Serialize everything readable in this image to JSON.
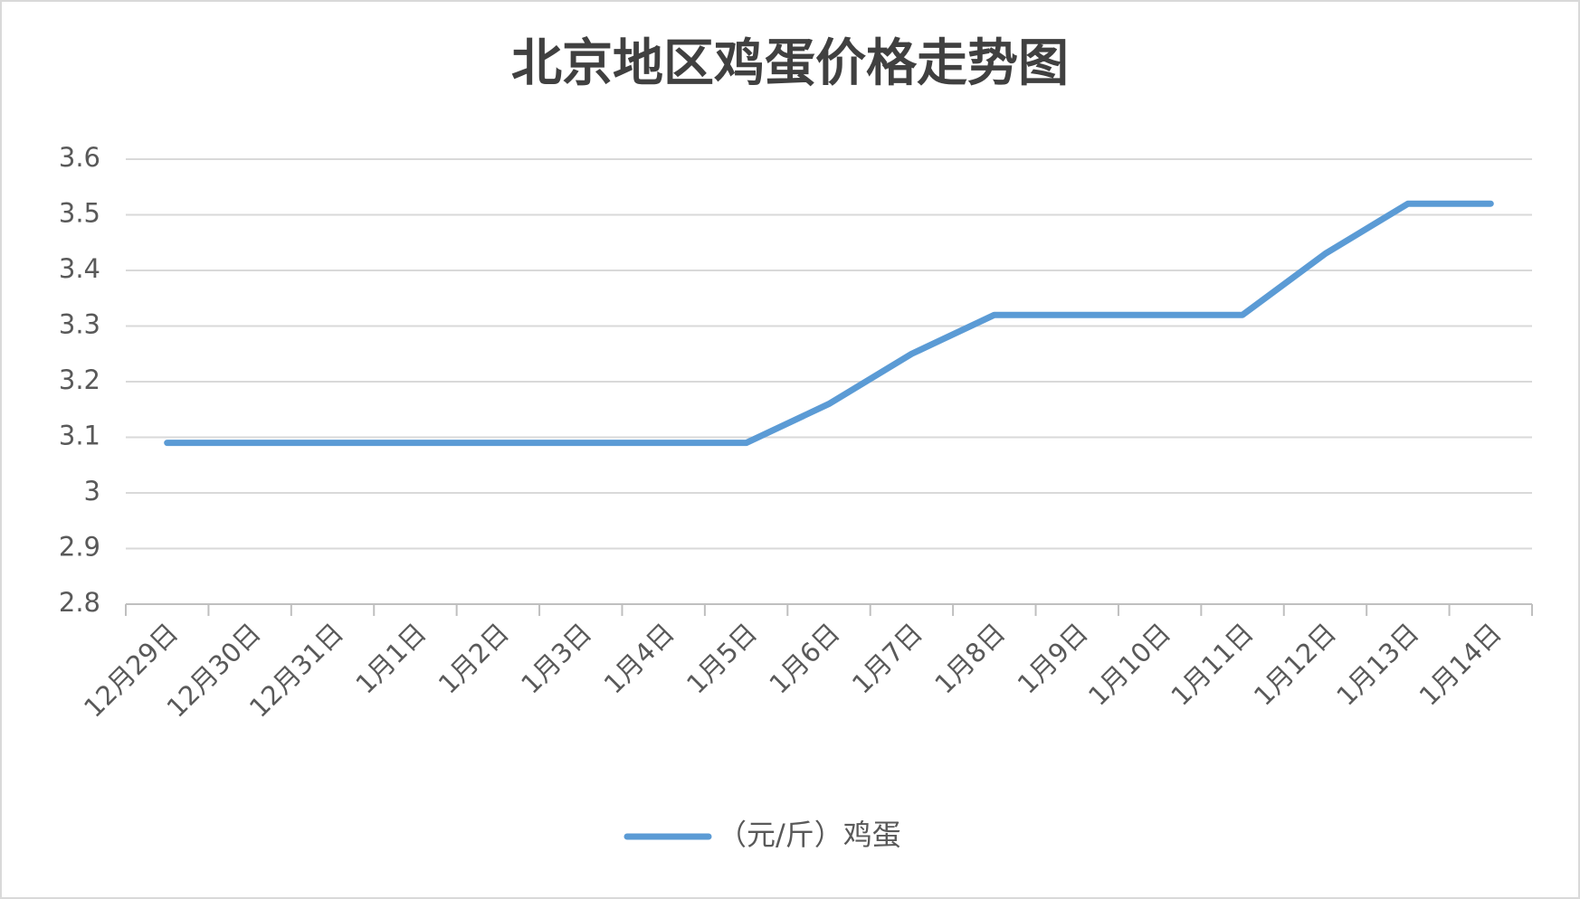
{
  "chart_data": {
    "type": "line",
    "title": "北京地区鸡蛋价格走势图",
    "categories": [
      "12月29日",
      "12月30日",
      "12月31日",
      "1月1日",
      "1月2日",
      "1月3日",
      "1月4日",
      "1月5日",
      "1月6日",
      "1月7日",
      "1月8日",
      "1月9日",
      "1月10日",
      "1月11日",
      "1月12日",
      "1月13日",
      "1月14日"
    ],
    "series": [
      {
        "name": "（元/斤）鸡蛋",
        "color": "#5b9bd5",
        "values": [
          3.09,
          3.09,
          3.09,
          3.09,
          3.09,
          3.09,
          3.09,
          3.09,
          3.16,
          3.25,
          3.32,
          3.32,
          3.32,
          3.32,
          3.43,
          3.52,
          3.52
        ]
      }
    ],
    "ylim": [
      2.8,
      3.6
    ],
    "yticks": [
      2.8,
      2.9,
      3,
      3.1,
      3.2,
      3.3,
      3.4,
      3.5,
      3.6
    ],
    "grid": true,
    "legend": "bottom"
  }
}
